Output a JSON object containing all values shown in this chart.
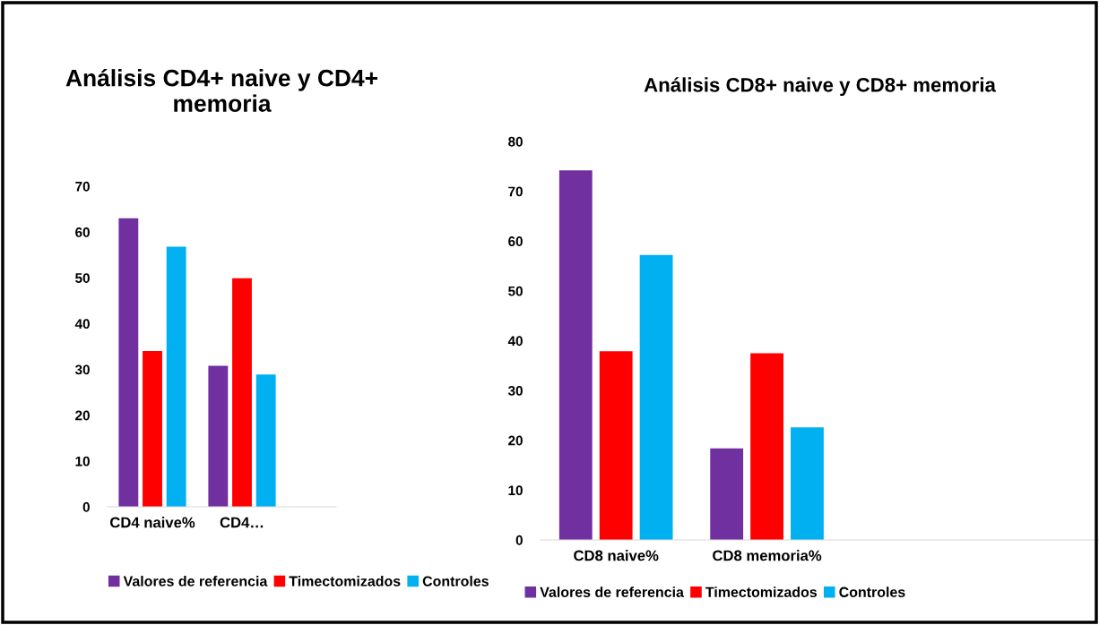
{
  "chart_data": [
    {
      "type": "bar",
      "title": "Análisis CD4+ naive y CD4+\nmemoria",
      "categories": [
        "CD4 naive%",
        "CD4…"
      ],
      "series": [
        {
          "name": "Valores de referencia",
          "color": "#7030a0",
          "values": [
            63.0,
            30.8
          ]
        },
        {
          "name": "Timectomizados",
          "color": "#ff0000",
          "values": [
            34.0,
            49.9
          ]
        },
        {
          "name": "Controles",
          "color": "#00b0f0",
          "values": [
            56.8,
            28.9
          ]
        }
      ],
      "ylim": [
        0,
        70
      ],
      "yticks": [
        0,
        10,
        20,
        30,
        40,
        50,
        60,
        70
      ],
      "grid": false,
      "legend": "bottom"
    },
    {
      "type": "bar",
      "title": "Análisis CD8+ naive y CD8+ memoria",
      "categories": [
        "CD8 naive%",
        "CD8 memoria%"
      ],
      "series": [
        {
          "name": "Valores de referencia",
          "color": "#7030a0",
          "values": [
            74.2,
            18.4
          ]
        },
        {
          "name": "Timectomizados",
          "color": "#ff0000",
          "values": [
            37.9,
            37.5
          ]
        },
        {
          "name": "Controles",
          "color": "#00b0f0",
          "values": [
            57.2,
            22.6
          ]
        }
      ],
      "ylim": [
        0,
        80
      ],
      "yticks": [
        0,
        10,
        20,
        30,
        40,
        50,
        60,
        70,
        80
      ],
      "grid": false,
      "legend": "bottom"
    }
  ]
}
